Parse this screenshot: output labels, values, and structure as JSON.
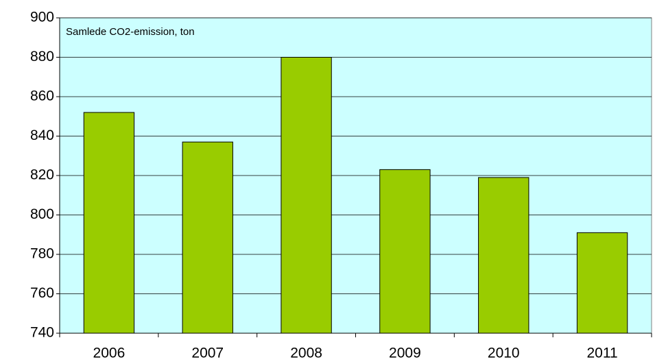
{
  "chart_data": {
    "type": "bar",
    "title": "Samlede CO2-emission, ton",
    "categories": [
      "2006",
      "2007",
      "2008",
      "2009",
      "2010",
      "2011"
    ],
    "values": [
      852,
      837,
      880,
      823,
      819,
      791
    ],
    "color": "#99cc00",
    "ylim": [
      740,
      900
    ],
    "yticks": [
      740,
      760,
      780,
      800,
      820,
      840,
      860,
      880,
      900
    ],
    "grid": true
  }
}
